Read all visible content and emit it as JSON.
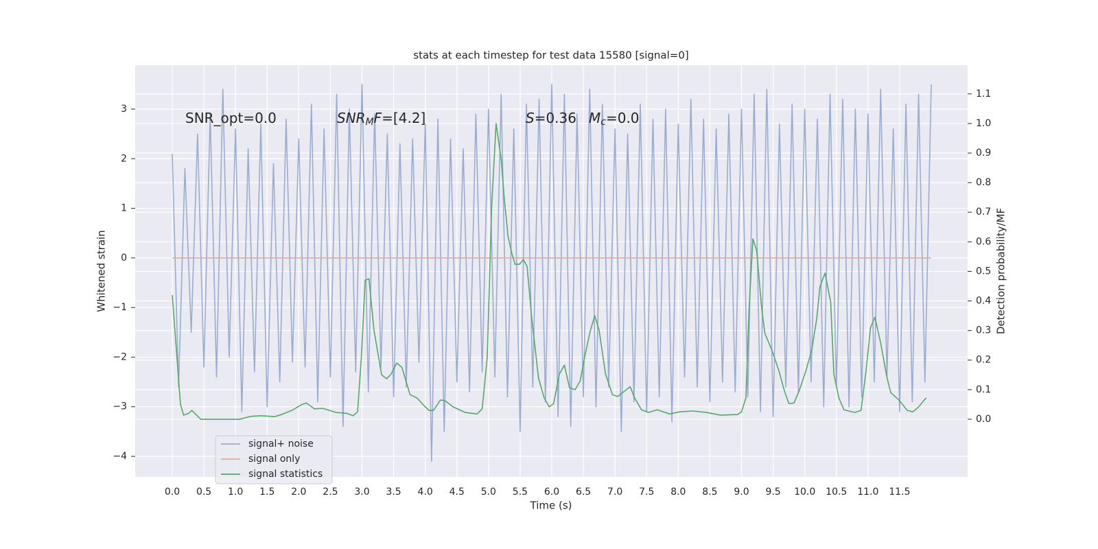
{
  "chart_data": {
    "type": "line",
    "title": "stats at each timestep for test data 15580 [signal=0]",
    "xlabel": "Time (s)",
    "ylabel": "Whitened strain",
    "y2label": "Detection probability/MF",
    "grid": true,
    "legend": "lower left",
    "xlim": [
      -0.586,
      12.575
    ],
    "ylim": [
      -4.415,
      3.885
    ],
    "y2lim": [
      -0.195,
      1.197
    ],
    "xticks": [
      {
        "value": 0,
        "label": "0.0"
      },
      {
        "value": 0.5,
        "label": "0.5"
      },
      {
        "value": 1,
        "label": "1.0"
      },
      {
        "value": 1.5,
        "label": "1.5"
      },
      {
        "value": 2,
        "label": "2.0"
      },
      {
        "value": 2.5,
        "label": "2.5"
      },
      {
        "value": 3,
        "label": "3.0"
      },
      {
        "value": 3.5,
        "label": "3.5"
      },
      {
        "value": 4,
        "label": "4.0"
      },
      {
        "value": 4.5,
        "label": "4.5"
      },
      {
        "value": 5,
        "label": "5.0"
      },
      {
        "value": 5.5,
        "label": "5.5"
      },
      {
        "value": 6,
        "label": "6.0"
      },
      {
        "value": 6.5,
        "label": "6.5"
      },
      {
        "value": 7,
        "label": "7.0"
      },
      {
        "value": 7.5,
        "label": "7.5"
      },
      {
        "value": 8,
        "label": "8.0"
      },
      {
        "value": 8.5,
        "label": "8.5"
      },
      {
        "value": 9,
        "label": "9.0"
      },
      {
        "value": 9.5,
        "label": "9.5"
      },
      {
        "value": 10,
        "label": "10.0"
      },
      {
        "value": 10.5,
        "label": "10.5"
      },
      {
        "value": 11,
        "label": "11.0"
      },
      {
        "value": 11.5,
        "label": "11.5"
      }
    ],
    "yticks": [
      {
        "value": -4,
        "label": "−4"
      },
      {
        "value": -3,
        "label": "−3"
      },
      {
        "value": -2,
        "label": "−2"
      },
      {
        "value": -1,
        "label": "−1"
      },
      0,
      1,
      2,
      3
    ],
    "y2ticks": [
      {
        "value": 0,
        "label": "0.0"
      },
      {
        "value": 0.1,
        "label": "0.1"
      },
      {
        "value": 0.2,
        "label": "0.2"
      },
      {
        "value": 0.3,
        "label": "0.3"
      },
      {
        "value": 0.4,
        "label": "0.4"
      },
      {
        "value": 0.5,
        "label": "0.5"
      },
      {
        "value": 0.6,
        "label": "0.6"
      },
      {
        "value": 0.7,
        "label": "0.7"
      },
      {
        "value": 0.8,
        "label": "0.8"
      },
      {
        "value": 0.9,
        "label": "0.9"
      },
      {
        "value": 1,
        "label": "1.0"
      },
      {
        "value": 1.1,
        "label": "1.1"
      }
    ],
    "annotations": [
      {
        "parts": [
          {
            "text": "SNR_opt=0.0"
          }
        ]
      },
      {
        "parts": [
          {
            "text": "SNR",
            "italic": true
          },
          {
            "text": "M",
            "italic": true,
            "sub": true
          },
          {
            "text": "F",
            "italic": true
          },
          {
            "text": "=[4.2]"
          }
        ]
      },
      {
        "parts": [
          {
            "text": "S",
            "italic": true
          },
          {
            "text": "=0.36"
          }
        ]
      },
      {
        "parts": [
          {
            "text": "M",
            "italic": true
          },
          {
            "text": "c",
            "italic": true,
            "sub": true
          },
          {
            "text": "=0.0"
          }
        ]
      }
    ],
    "series": [
      {
        "name": "signal+ noise",
        "color": "#9aacd0",
        "x": [
          0,
          0.1,
          0.2,
          0.3,
          0.4,
          0.5,
          0.6,
          0.7,
          0.8,
          0.9,
          1.0,
          1.1,
          1.2,
          1.3,
          1.4,
          1.5,
          1.6,
          1.7,
          1.8,
          1.9,
          2.0,
          2.1,
          2.2,
          2.3,
          2.4,
          2.5,
          2.6,
          2.7,
          2.8,
          2.9,
          3.0,
          3.1,
          3.2,
          3.3,
          3.4,
          3.5,
          3.6,
          3.7,
          3.8,
          3.9,
          4.0,
          4.1,
          4.2,
          4.3,
          4.4,
          4.5,
          4.6,
          4.7,
          4.8,
          4.9,
          5.0,
          5.1,
          5.2,
          5.3,
          5.4,
          5.5,
          5.6,
          5.7,
          5.8,
          5.9,
          6.0,
          6.1,
          6.2,
          6.3,
          6.4,
          6.5,
          6.6,
          6.7,
          6.8,
          6.9,
          7.0,
          7.1,
          7.2,
          7.3,
          7.4,
          7.5,
          7.6,
          7.7,
          7.8,
          7.9,
          8.0,
          8.1,
          8.2,
          8.3,
          8.4,
          8.5,
          8.6,
          8.7,
          8.8,
          8.9,
          9.0,
          9.1,
          9.2,
          9.3,
          9.4,
          9.5,
          9.6,
          9.7,
          9.8,
          9.9,
          10.0,
          10.1,
          10.2,
          10.3,
          10.4,
          10.5,
          10.6,
          10.7,
          10.8,
          10.9,
          11.0,
          11.1,
          11.2,
          11.3,
          11.4,
          11.5,
          11.6,
          11.7,
          11.8,
          11.9,
          12.0
        ],
        "values": [
          2.1,
          -2.6,
          1.8,
          -1.5,
          2.5,
          -2.2,
          2.9,
          -2.4,
          3.4,
          -2.0,
          2.6,
          -3.1,
          2.2,
          -2.3,
          2.7,
          -3.0,
          1.9,
          -2.5,
          2.8,
          -2.1,
          2.4,
          -2.2,
          3.1,
          -2.9,
          2.6,
          -2.4,
          3.3,
          -3.4,
          3.0,
          -2.3,
          3.5,
          -2.7,
          2.9,
          -2.2,
          2.5,
          -2.8,
          2.3,
          -2.6,
          2.4,
          -2.1,
          2.7,
          -4.1,
          2.8,
          -3.5,
          2.4,
          -2.5,
          2.2,
          -2.7,
          2.9,
          -2.3,
          3.0,
          -2.4,
          3.3,
          -2.8,
          2.6,
          -3.5,
          3.1,
          -2.6,
          3.2,
          -2.9,
          3.5,
          -3.2,
          3.3,
          -3.4,
          2.9,
          -2.8,
          3.4,
          -3.0,
          3.1,
          -2.6,
          2.6,
          -3.5,
          2.5,
          -2.9,
          3.1,
          -3.1,
          2.8,
          -2.8,
          3.0,
          -3.3,
          2.7,
          -2.4,
          3.2,
          -2.6,
          2.8,
          -2.9,
          2.6,
          -2.5,
          2.9,
          -2.7,
          3.0,
          -2.8,
          3.3,
          -3.1,
          3.4,
          -3.2,
          2.7,
          -2.6,
          3.1,
          -2.7,
          3.0,
          -2.5,
          2.8,
          -3.0,
          3.3,
          -2.6,
          3.2,
          -3.0,
          3.0,
          -2.8,
          2.9,
          -2.5,
          3.4,
          -2.4,
          2.6,
          -3.1,
          3.1,
          -2.9,
          3.3,
          -2.5,
          3.5
        ]
      },
      {
        "name": "signal only",
        "color": "#e3ae95",
        "x": [
          0,
          12.0
        ],
        "values": [
          0,
          0
        ]
      },
      {
        "name": "signal statistics",
        "color": "#55a868",
        "axis": "y2",
        "x": [
          0,
          0.13,
          0.18,
          0.26,
          0.31,
          0.45,
          0.64,
          0.86,
          1.07,
          1.24,
          1.4,
          1.62,
          1.73,
          1.89,
          2.05,
          2.12,
          2.25,
          2.38,
          2.59,
          2.76,
          2.86,
          2.93,
          2.99,
          3.05,
          3.11,
          3.19,
          3.31,
          3.39,
          3.46,
          3.55,
          3.63,
          3.76,
          3.87,
          3.99,
          4.06,
          4.13,
          4.24,
          4.31,
          4.44,
          4.63,
          4.82,
          4.9,
          4.98,
          5.05,
          5.12,
          5.2,
          5.25,
          5.31,
          5.37,
          5.42,
          5.49,
          5.55,
          5.61,
          5.68,
          5.79,
          5.88,
          5.96,
          6.03,
          6.12,
          6.2,
          6.28,
          6.37,
          6.45,
          6.52,
          6.61,
          6.68,
          6.75,
          6.85,
          6.96,
          7.04,
          7.15,
          7.24,
          7.31,
          7.42,
          7.53,
          7.67,
          7.86,
          8.02,
          8.23,
          8.45,
          8.67,
          8.94,
          9.0,
          9.07,
          9.12,
          9.18,
          9.24,
          9.32,
          9.37,
          9.48,
          9.59,
          9.68,
          9.75,
          9.83,
          9.91,
          10.02,
          10.11,
          10.19,
          10.24,
          10.32,
          10.41,
          10.46,
          10.54,
          10.62,
          10.79,
          10.89,
          10.97,
          11.04,
          11.11,
          11.2,
          11.3,
          11.36,
          11.49,
          11.62,
          11.71,
          11.8,
          11.87,
          11.92
        ],
        "values": [
          0.42,
          0.05,
          0.014,
          0.02,
          0.03,
          0.0,
          0.0,
          0.0,
          0.0,
          0.01,
          0.012,
          0.009,
          0.016,
          0.03,
          0.05,
          0.055,
          0.035,
          0.037,
          0.023,
          0.02,
          0.012,
          0.025,
          0.21,
          0.47,
          0.475,
          0.3,
          0.15,
          0.137,
          0.153,
          0.19,
          0.176,
          0.083,
          0.072,
          0.044,
          0.03,
          0.03,
          0.065,
          0.063,
          0.042,
          0.023,
          0.018,
          0.035,
          0.21,
          0.72,
          1.0,
          0.88,
          0.745,
          0.617,
          0.56,
          0.524,
          0.524,
          0.54,
          0.517,
          0.35,
          0.14,
          0.072,
          0.042,
          0.053,
          0.153,
          0.183,
          0.107,
          0.1,
          0.13,
          0.21,
          0.3,
          0.35,
          0.3,
          0.153,
          0.083,
          0.077,
          0.095,
          0.11,
          0.072,
          0.032,
          0.023,
          0.032,
          0.018,
          0.025,
          0.028,
          0.023,
          0.014,
          0.016,
          0.025,
          0.072,
          0.373,
          0.61,
          0.57,
          0.373,
          0.29,
          0.234,
          0.165,
          0.095,
          0.053,
          0.055,
          0.095,
          0.165,
          0.234,
          0.34,
          0.448,
          0.494,
          0.397,
          0.153,
          0.072,
          0.032,
          0.023,
          0.03,
          0.165,
          0.31,
          0.345,
          0.258,
          0.141,
          0.09,
          0.065,
          0.03,
          0.025,
          0.042,
          0.06,
          0.072
        ]
      }
    ]
  }
}
